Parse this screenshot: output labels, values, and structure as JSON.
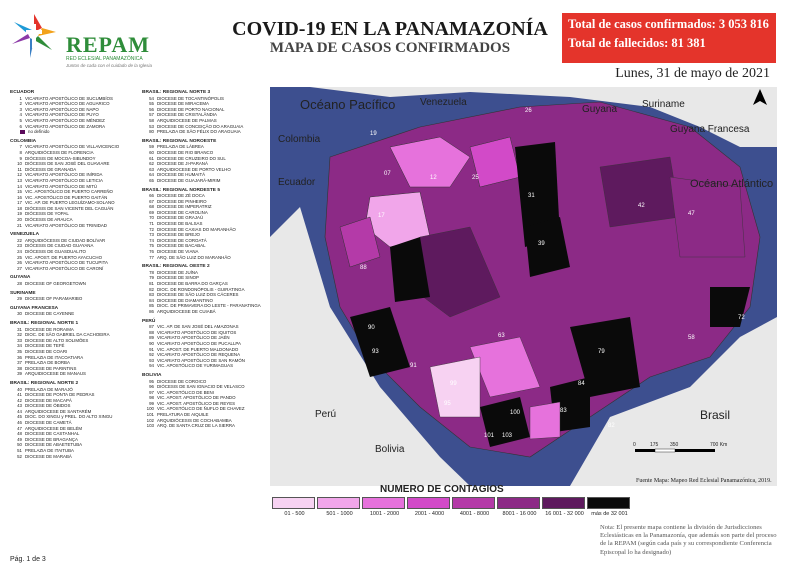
{
  "header": {
    "logo_text": "REPAM",
    "logo_subtitle": "RED ECLESIAL PANAMAZÓNICA",
    "logo_tagline": "Juntos de cada con el cuidado de la Iglesia",
    "title": "COVID-19 EN LA PANAMAZONÍA",
    "subtitle": "MAPA DE CASOS CONFIRMADOS",
    "total_cases": "Total de casos confirmados: 3 053 816",
    "total_deaths": "Total de fallecidos: 81 381",
    "date": "Lunes, 31 de mayo de 2021"
  },
  "colors": {
    "bin1": "#f7d2f2",
    "bin2": "#f1a6ea",
    "bin3": "#e672dc",
    "bin4": "#d24ac8",
    "bin5": "#b43aa8",
    "bin6": "#8c2a86",
    "bin7": "#5e1a5e",
    "bin8": "#0a0a0a",
    "ocean": "#3d4f8f",
    "banner": "#e4342b",
    "land": "#e8e8e8"
  },
  "sidebar_left": [
    {
      "heading": "ECUADOR",
      "items": [
        [
          "1",
          "VICARIATO APOSTÓLICO DE SUCUMBÍOS"
        ],
        [
          "2",
          "VICARIATO APOSTÓLICO DE AGUARICO"
        ],
        [
          "3",
          "VICARIATO APOSTÓLICO DE NAPO"
        ],
        [
          "4",
          "VICARIATO APOSTÓLICO DE PUYO"
        ],
        [
          "5",
          "VICARIATO APOSTÓLICO DE MÉNDEZ"
        ],
        [
          "6",
          "VICARIATO APOSTÓLICO DE ZAMORA"
        ]
      ]
    },
    {
      "heading": "COLOMBIA",
      "items": [
        [
          "7",
          "VICARIATO APOSTÓLICO DE VILLAVICENCIO"
        ],
        [
          "8",
          "ARQUIDIÓCESIS DE FLORENCIA"
        ],
        [
          "9",
          "DIÓCESIS DE MOCOA-SIBUNDOY"
        ],
        [
          "10",
          "DIÓCESIS DE SAN JOSÉ DEL GUAVIARE"
        ],
        [
          "11",
          "DIÓCESIS DE GRANADA"
        ],
        [
          "12",
          "VICARIATO APOSTÓLICO DE INÍRIDA"
        ],
        [
          "13",
          "VICARIATO APOSTÓLICO DE LETICIA"
        ],
        [
          "14",
          "VICARIATO APOSTÓLICO DE MITÚ"
        ],
        [
          "15",
          "VIC. APOSTÓLICO DE PUERTO CARREÑO"
        ],
        [
          "16",
          "VIC. APOSTÓLICO DE PUERTO GAITÁN"
        ],
        [
          "17",
          "VIC. AP. DE PUERTO LEGUÍZAMO-SOLANO"
        ],
        [
          "18",
          "DIÓCESIS DE SAN VICENTE DEL CAGUÁN"
        ],
        [
          "19",
          "DIÓCESIS DE YOPAL"
        ],
        [
          "20",
          "DIÓCESIS DE ARAUCA"
        ],
        [
          "21",
          "VICARIATO APOSTÓLICO DE TRINIDAD"
        ]
      ]
    },
    {
      "heading": "VENEZUELA",
      "items": [
        [
          "22",
          "ARQUIDIÓCESIS DE CIUDAD BOLÍVAR"
        ],
        [
          "23",
          "DIÓCESIS DE CIUDAD GUAYANA"
        ],
        [
          "24",
          "DIÓCESIS DE GUASDUALITO"
        ],
        [
          "25",
          "VIC. APOST. DE PUERTO AYACUCHO"
        ],
        [
          "26",
          "VICARIATO APOSTÓLICO DE TUCUPITA"
        ],
        [
          "27",
          "VICARIATO APOSTÓLICO DE CARONÍ"
        ]
      ]
    },
    {
      "heading": "GUYANA",
      "items": [
        [
          "28",
          "DIOCESE OF GEORGETOWN"
        ]
      ]
    },
    {
      "heading": "SURINAME",
      "items": [
        [
          "29",
          "DIOCESE OF PARAMARIBO"
        ]
      ]
    },
    {
      "heading": "GUYANA FRANCESA",
      "items": [
        [
          "30",
          "DIOCESE DE CAYENNE"
        ]
      ]
    },
    {
      "heading": "BRASIL: REGIONAL NORTE 1",
      "items": [
        [
          "31",
          "DIOCESE DE RORAIMA"
        ],
        [
          "32",
          "DIOC. DE SÃO GABRIEL DA CACHOEIRA"
        ],
        [
          "33",
          "DIOCESE DE ALTO SOLIMÕES"
        ],
        [
          "34",
          "DIOCESE DE TEFÉ"
        ],
        [
          "35",
          "DIOCESE DE COARI"
        ],
        [
          "36",
          "PRELAZIA DE ITACOATIARA"
        ],
        [
          "37",
          "PRELAZIA DE BORBA"
        ],
        [
          "38",
          "DIOCESE DE PARINTINS"
        ],
        [
          "39",
          "ARQUIDIOCESE DE MANAUS"
        ]
      ]
    },
    {
      "heading": "BRASIL: REGIONAL NORTE 2",
      "items": [
        [
          "40",
          "PRELAZIA DE MARAJÓ"
        ],
        [
          "41",
          "DIOCESE DE PONTA DE PEDRAS"
        ],
        [
          "42",
          "DIOCESE DE MACAPÁ"
        ],
        [
          "43",
          "DIOCESE DE ÓBIDOS"
        ],
        [
          "44",
          "ARQUIDIOCESE DE SANTARÉM"
        ],
        [
          "45",
          "DIOC. DO XINGU y PREL. DO ALTO XINGU"
        ],
        [
          "46",
          "DIOCESE DE CAMETÁ"
        ],
        [
          "47",
          "ARQUIDIOCESE DE BELÉM"
        ],
        [
          "48",
          "DIOCESE DE CASTANHAL"
        ],
        [
          "49",
          "DIOCESE DE BRAGANÇA"
        ],
        [
          "50",
          "DIOCESE DE ABAETETUBA"
        ],
        [
          "51",
          "PRELAZIA DE ITAITUBA"
        ],
        [
          "52",
          "DIOCESE DE MARABÁ"
        ]
      ]
    }
  ],
  "sidebar_right": [
    {
      "heading": "BRASIL: REGIONAL NORTE 3",
      "items": [
        [
          "54",
          "DIOCESE DE TOCANTINÓPOLIS"
        ],
        [
          "55",
          "DIOCESE DE MIRACEMA"
        ],
        [
          "56",
          "DIOCESE DE PORTO NACIONAL"
        ],
        [
          "57",
          "DIOCESE DE CRISTALÂNDIA"
        ],
        [
          "58",
          "ARQUIDIOCESE DE PALMAS"
        ],
        [
          "53",
          "DIOCESE DE CONCEIÇÃO DO ARAGUAIA"
        ],
        [
          "80",
          "PRELAZIA DE SÃO FÉLIX DO ARAGUAIA"
        ]
      ]
    },
    {
      "heading": "BRASIL: REGIONAL NOROESTE",
      "items": [
        [
          "59",
          "PRELAZIA DE LÁBREA"
        ],
        [
          "60",
          "DIOCESE DE RIO BRANCO"
        ],
        [
          "61",
          "DIOCESE DE CRUZEIRO DO SUL"
        ],
        [
          "62",
          "DIOCESE DE JI-PARANÁ"
        ],
        [
          "63",
          "ARQUIDIOCESE DE PORTO VELHO"
        ],
        [
          "64",
          "DIOCESE DE HUMAITÁ"
        ],
        [
          "65",
          "DIOCESE DE GUAJARÁ-MIRIM"
        ]
      ]
    },
    {
      "heading": "BRASIL: REGIONAL NORDESTE 5",
      "items": [
        [
          "66",
          "DIOCESE DE ZÉ DOCA"
        ],
        [
          "67",
          "DIOCESE DE PINHEIRO"
        ],
        [
          "68",
          "DIOCESE DE IMPERATRIZ"
        ],
        [
          "69",
          "DIOCESE DE CAROLINA"
        ],
        [
          "70",
          "DIOCESE DE GRAJAÚ"
        ],
        [
          "71",
          "DIOCESE DE BALSAS"
        ],
        [
          "72",
          "DIOCESE DE CAXIAS DO MARANHÃO"
        ],
        [
          "73",
          "DIOCESE DE BREJO"
        ],
        [
          "74",
          "DIOCESE DE COROATÁ"
        ],
        [
          "75",
          "DIOCESE DE BACABAL"
        ],
        [
          "76",
          "DIOCESE DE VIANA"
        ],
        [
          "77",
          "ARQ. DE SÃO LUIZ DO MARANHÃO"
        ]
      ]
    },
    {
      "heading": "BRASIL: REGIONAL OESTE 2",
      "items": [
        [
          "78",
          "DIOCESE DE JUÍNA"
        ],
        [
          "79",
          "DIOCESE DE SINOP"
        ],
        [
          "81",
          "DIOCESE DE BARRA DO GARÇAS"
        ],
        [
          "82",
          "DIOC. DE RONDONÓPOLIS - GUIRATINGA"
        ],
        [
          "83",
          "DIOCESE DE SÃO LUIZ DOS CÁCERES"
        ],
        [
          "84",
          "DIOCESE DE DIAMANTINO"
        ],
        [
          "85",
          "DIOC. DE PRIMAVERA DO LESTE - PARANATINGA"
        ],
        [
          "86",
          "ARQUIDIOCESE DE CUIABÁ"
        ]
      ]
    },
    {
      "heading": "PERÚ",
      "items": [
        [
          "87",
          "VIC. AP. DE SAN JOSÉ DEL AMAZONAS"
        ],
        [
          "88",
          "VICARIATO APOSTÓLICO DE IQUITOS"
        ],
        [
          "89",
          "VICARIATO APOSTÓLICO DE JAÉN"
        ],
        [
          "90",
          "VICARIATO APOSTÓLICO DE PUCALLPA"
        ],
        [
          "91",
          "VIC. APOST. DE PUERTO MALDONADO"
        ],
        [
          "92",
          "VICARIATO APOSTÓLICO DE REQUENA"
        ],
        [
          "93",
          "VICARIATO APOSTÓLICO DE SAN RAMÓN"
        ],
        [
          "94",
          "VIC. APOSTÓLICO DE YURIMAGUAS"
        ]
      ]
    },
    {
      "heading": "BOLIVIA",
      "items": [
        [
          "95",
          "DIOCESE DE COROICO"
        ],
        [
          "96",
          "DIÓCESIS DE SAN IGNACIO DE VELASCO"
        ],
        [
          "97",
          "VIC. APOSTÓLICO DE BENI"
        ],
        [
          "98",
          "VIC. APOST. APOSTÓLICO DE PANDO"
        ],
        [
          "99",
          "VIC. APOST. APOSTÓLICO DE REYES"
        ],
        [
          "100",
          "VIC. APOSTÓLICO DE ÑUFLO DE CHAVEZ"
        ],
        [
          "101",
          "PRELATURA DE AIQUILE"
        ],
        [
          "102",
          "ARQUIDIÓCESIS DE COCHABAMBA"
        ],
        [
          "103",
          "ARQ. DE SANTA CRUZ DE LA SIERRA"
        ]
      ]
    }
  ],
  "no_definido": "no definido",
  "map": {
    "labels": {
      "pacific": "Océano Pacífico",
      "atlantic": "Océano Atlántico",
      "venezuela": "Venezuela",
      "guyana": "Guyana",
      "suriname": "Suriname",
      "guyana_francesa": "Guyana Francesa",
      "colombia": "Colombia",
      "ecuador": "Ecuador",
      "peru": "Perú",
      "bolivia": "Bolivia",
      "brasil": "Brasil"
    },
    "numbers": [
      "19",
      "07",
      "12",
      "25",
      "26",
      "31",
      "42",
      "47",
      "17",
      "39",
      "88",
      "79",
      "63",
      "58",
      "72",
      "90",
      "93",
      "91",
      "99",
      "95",
      "84",
      "83",
      "100",
      "101",
      "103",
      "82"
    ],
    "scale_ticks": [
      "0",
      "175",
      "350",
      "700 Km"
    ]
  },
  "legend": {
    "title": "NUMERO DE CONTAGIOS",
    "bins": [
      "01 - 500",
      "501 - 1000",
      "1001 - 2000",
      "2001 - 4000",
      "4001 - 8000",
      "8001 - 16 000",
      "16 001 - 32 000",
      "más de 32 001"
    ]
  },
  "source": "Fuente Mapa: Mapeo Red Eclesial Panamazónica, 2019.",
  "note": "Nota: El presente mapa contiene la división de Jurisdicciones Eclesiásticas en la Panamazonía, que además son parte del proceso de la REPAM  (según cada país y su correspondiente Conferencia Episcopal lo ha designado)",
  "page": "Pág. 1 de 3"
}
